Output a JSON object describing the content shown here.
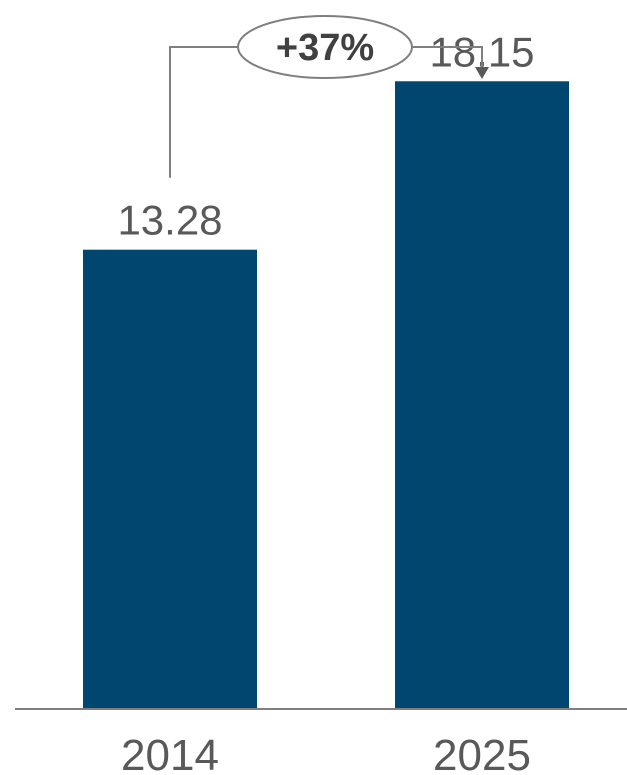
{
  "chart_data": {
    "type": "bar",
    "categories": [
      "2014",
      "2025"
    ],
    "values": [
      13.28,
      18.15
    ],
    "value_labels": [
      "13.28",
      "18.15"
    ],
    "ylim": [
      0,
      20.5
    ],
    "grid": false,
    "legend": "none",
    "annotation": {
      "text": "+37%",
      "from": "2014",
      "to": "2025"
    }
  },
  "colors": {
    "bar": "#00466e",
    "text": "#595959",
    "annotation_text": "#404040",
    "line": "#7f7f7f"
  }
}
